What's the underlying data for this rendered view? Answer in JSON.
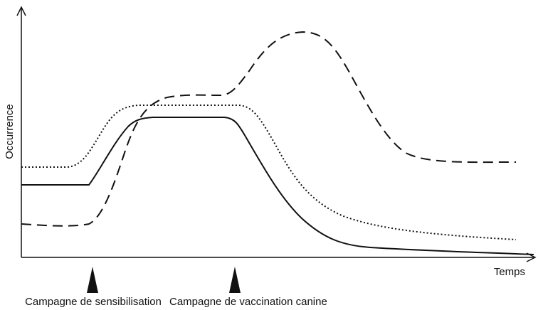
{
  "axes": {
    "y_label": "Occurrence",
    "x_label": "Temps"
  },
  "annotations": [
    "Campagne de sensibilisation",
    "Campagne de vaccination canine"
  ]
}
